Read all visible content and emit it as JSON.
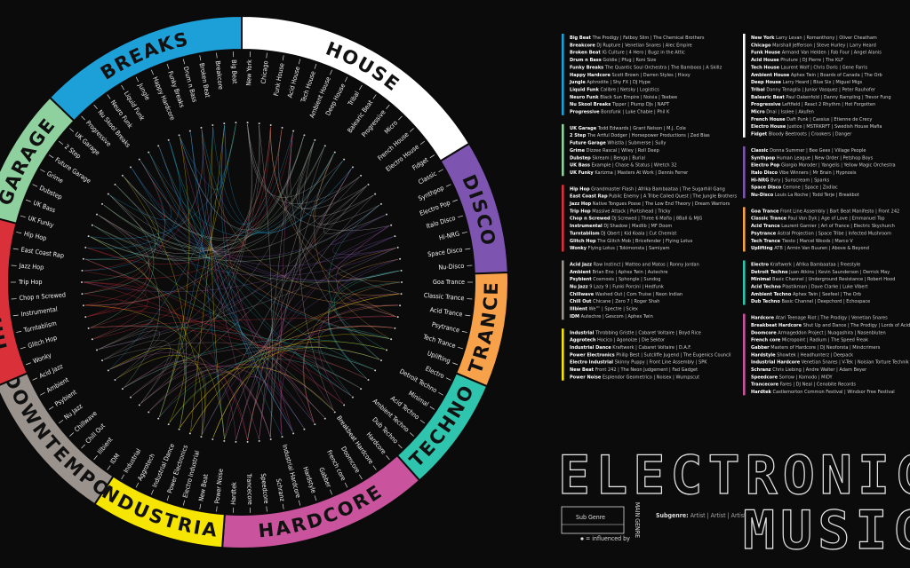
{
  "columns": [
    [
      {
        "name": "BREAKS",
        "color": "#1d9fd8",
        "subgenres": [
          {
            "name": "Big Beat",
            "artists": "The Prodigy | Fatboy Slim | The Chemical Brothers"
          },
          {
            "name": "Breakcore",
            "artists": "DJ Rupture | Venetian Snares | Alec Empire"
          },
          {
            "name": "Broken Beat",
            "artists": "IG Culture | 4 Hero | Bugz in the Attic"
          },
          {
            "name": "Drum n Bass",
            "artists": "Goldie | Pfug | Roni Size"
          },
          {
            "name": "Funky Breaks",
            "artists": "The Quantic Soul Orchestra | The Bamboos | A Skillz"
          },
          {
            "name": "Happy Hardcore",
            "artists": "Scott Brown | Darren Styles | Hixxy"
          },
          {
            "name": "Jungle",
            "artists": "Aphrodite | Shy FX | DJ Hype"
          },
          {
            "name": "Liquid Funk",
            "artists": "Calibre | Netsky | Logistics"
          },
          {
            "name": "Neuro Funk",
            "artists": "Black Sun Empire | Noisia | Teebee"
          },
          {
            "name": "Nu Skool Breaks",
            "artists": "Tipper | Plump DJs | NAPT"
          },
          {
            "name": "Progressive",
            "artists": "Borofunk | Luke Chable | Phil K"
          }
        ]
      },
      {
        "name": "GARAGE",
        "color": "#8fd19e",
        "subgenres": [
          {
            "name": "UK Garage",
            "artists": "Todd Edwards | Grant Nelson | M.J. Cole"
          },
          {
            "name": "2 Step",
            "artists": "The Artful Dodger | Horsepower Productions | Zed Bias"
          },
          {
            "name": "Future Garage",
            "artists": "Whistla | Submerse | Sully"
          },
          {
            "name": "Grime",
            "artists": "Dizzee Rascal | Wiley | Roll Deep"
          },
          {
            "name": "Dubstep",
            "artists": "Skream | Benga | Burial"
          },
          {
            "name": "UK Bass",
            "artists": "Example | Chase & Status | Wretch 32"
          },
          {
            "name": "UK Funky",
            "artists": "Karizma | Masters At Work | Dennis Ferrer"
          }
        ]
      },
      {
        "name": "HIP HOP",
        "color": "#d9303a",
        "subgenres": [
          {
            "name": "Hip Hop",
            "artists": "Grandmaster Flash | Afrika Bambaataa | The Sugarhill Gang"
          },
          {
            "name": "East Coast Rap",
            "artists": "Public Enemy | A Tribe Called Quest | The Jungle Brothers"
          },
          {
            "name": "Jazz Hop",
            "artists": "Native Tongues Posse | The Low End Theory | Dream Warriors"
          },
          {
            "name": "Trip Hop",
            "artists": "Massive Attack | Portishead | Tricky"
          },
          {
            "name": "Chop n Screwed",
            "artists": "DJ Screwed | Three 6 Mafia | 8Ball & MJG"
          },
          {
            "name": "Instrumental",
            "artists": "DJ Shadow | Madlib | MF Doom"
          },
          {
            "name": "Turntablism",
            "artists": "DJ Qbert | Kid Koala | Cut Chemist"
          },
          {
            "name": "Glitch Hop",
            "artists": "The Glitch Mob | Bricefender | Flying Lotus"
          },
          {
            "name": "Wonky",
            "artists": "Flying Lotus | Tokimonsta | Samiyam"
          }
        ]
      },
      {
        "name": "DOWNTEMPO",
        "color": "#9a928c",
        "subgenres": [
          {
            "name": "Acid Jazz",
            "artists": "Raw Instinct | Matteo and Matos | Ronny Jordan"
          },
          {
            "name": "Ambient",
            "artists": "Brian Eno | Aphex Twin | Autechre"
          },
          {
            "name": "Psybient",
            "artists": "Cosmosis | Sphongle | Sundog"
          },
          {
            "name": "Nu Jazz",
            "artists": "9 Lazy 9 | Funki Porcini | Hedfunk"
          },
          {
            "name": "Chillwave",
            "artists": "Washed Out | Com Truise | Neon Indian"
          },
          {
            "name": "Chill Out",
            "artists": "Chicane | Zero 7 | Roger Shah"
          },
          {
            "name": "Illbient",
            "artists": "We™ | Spectre | Sciex"
          },
          {
            "name": "IDM",
            "artists": "Autechre | Gescom | Aphex Twin"
          }
        ]
      },
      {
        "name": "INDUSTRIAL",
        "color": "#f6e500",
        "subgenres": [
          {
            "name": "Industrial",
            "artists": "Throbbing Gristle | Cabaret Voltaire | Boyd Rice"
          },
          {
            "name": "Aggrotech",
            "artists": "Hocico | Agonoize | Die Sektor"
          },
          {
            "name": "Industrial Dance",
            "artists": "Kraftwerk | Cabaret Voltaire | D.A.F."
          },
          {
            "name": "Power Electronics",
            "artists": "Philip Best | Sutcliffe Jugend | The Eugenics Council"
          },
          {
            "name": "Electro Industrial",
            "artists": "Skinny Puppy | Front Line Assembly | SPK"
          },
          {
            "name": "New Beat",
            "artists": "Front 242 | The Neon Judgement | Fad Gadget"
          },
          {
            "name": "Power Noise",
            "artists": "Esplendor Geometrico | Noisex | Wumpscut"
          }
        ]
      }
    ],
    [
      {
        "name": "HOUSE",
        "color": "#ffffff",
        "subgenres": [
          {
            "name": "New York",
            "artists": "Larry Levan | Romanthony | Oliver Cheatham"
          },
          {
            "name": "Chicago",
            "artists": "Marshall Jefferson | Steve Hurley | Larry Heard"
          },
          {
            "name": "Funk House",
            "artists": "Armand Van Helden | Fab Four | Angel Alanis"
          },
          {
            "name": "Acid House",
            "artists": "Phuture | DJ Pierre | The KLF"
          },
          {
            "name": "Tech House",
            "artists": "Laurent Wolf | Chris Doris | Gene Farris"
          },
          {
            "name": "Ambient House",
            "artists": "Aphex Twin | Boards of Canada | The Orb"
          },
          {
            "name": "Deep House",
            "artists": "Larry Heard | Blue Six | Miguel Migs"
          },
          {
            "name": "Tribal",
            "artists": "Danny Tenaglia | Junior Vasquez | Peter Rauhofer"
          },
          {
            "name": "Balearic Beat",
            "artists": "Paul Oakenfold | Danny Rampling | Trevor Fung"
          },
          {
            "name": "Progressive",
            "artists": "Leftfield | React 2 Rhythm | Hot Forgotten"
          },
          {
            "name": "Micro",
            "artists": "Dnai | Isolee | Akufen"
          },
          {
            "name": "French House",
            "artists": "Daft Punk | Cassius | Etienne de Crecy"
          },
          {
            "name": "Electro House",
            "artists": "Justice | MSTRKRFT | Swedish House Mafia"
          },
          {
            "name": "Fidget",
            "artists": "Bloody Beetroots | Crookers | Danger"
          }
        ]
      },
      {
        "name": "DISCO",
        "color": "#7d55b0",
        "subgenres": [
          {
            "name": "Classic",
            "artists": "Donna Summer | Bee Gees | Village People"
          },
          {
            "name": "Synthpop",
            "artists": "Human League | New Order | Petshop Boys"
          },
          {
            "name": "Electro Pop",
            "artists": "Giorgio Moroder | Yangelis | Yellow Magic Orchestra"
          },
          {
            "name": "Italo Disco",
            "artists": "Vibe Winners | Mr Brain | Hypnosis"
          },
          {
            "name": "Hi-NRG",
            "artists": "Bvry | Sunscream | Sparks"
          },
          {
            "name": "Space Disco",
            "artists": "Cerrone | Space | Zodiac"
          },
          {
            "name": "Nu-Disco",
            "artists": "Louis La Roche | Todd Terje | Breakbot"
          }
        ]
      },
      {
        "name": "TRANCE",
        "color": "#f7a24b",
        "subgenres": [
          {
            "name": "Goa Trance",
            "artists": "Front Line Assembly | Bart Beat Manifesto | Front 242"
          },
          {
            "name": "Classic Trance",
            "artists": "Paul Van Dyk | Age of Love | Emmanuel Top"
          },
          {
            "name": "Acid Trance",
            "artists": "Laurent Garnier | Art of Trance | Electric Skychurch"
          },
          {
            "name": "Psytrance",
            "artists": "Astral Projection | Space Tribe | Infected Mushroom"
          },
          {
            "name": "Tech Trance",
            "artists": "Tiesto | Marcel Woods | Marco V"
          },
          {
            "name": "Uplifting",
            "artists": "ATB | Armin Van Buuren | Above & Beyond"
          }
        ]
      },
      {
        "name": "TECHNO",
        "color": "#2ec4ad",
        "subgenres": [
          {
            "name": "Electro",
            "artists": "Kraftwerk | Afrika Bambaataa | Freestyle"
          },
          {
            "name": "Detroit Techno",
            "artists": "Juan Atkins | Kevin Saunderson | Derrick May"
          },
          {
            "name": "Minimal",
            "artists": "Basic Channel | Underground Resistance | Robert Hood"
          },
          {
            "name": "Acid Techno",
            "artists": "Plastikman | Dave Clarke | Luke Vibert"
          },
          {
            "name": "Ambient Techno",
            "artists": "Aphex Twin | Seefeel | The Orb"
          },
          {
            "name": "Dub Techno",
            "artists": "Basic Channel | Deepchord | Echospace"
          }
        ]
      },
      {
        "name": "HARDCORE",
        "color": "#c9539c",
        "subgenres": [
          {
            "name": "Hardcore",
            "artists": "Atari Teenage Riot | The Prodigy | Venetian Snares"
          },
          {
            "name": "Breakbeat Hardcore",
            "artists": "Shut Up and Dance | The Prodigy | Lords of Acid"
          },
          {
            "name": "Doomcore",
            "artists": "Armageddon Project | Nuagashira | Nasenbluten"
          },
          {
            "name": "French core",
            "artists": "Micropoint | Radium | The Speed Freak"
          },
          {
            "name": "Gabber",
            "artists": "Masters of Hardcore | DJ Neoforsta | Mindcrimers"
          },
          {
            "name": "Hardstyle",
            "artists": "Showtek | Headhunterz | Deepack"
          },
          {
            "name": "Industrial Hardcore",
            "artists": "Venetian Snares | V-Tek | Noisian Torture Technik"
          },
          {
            "name": "Schranz",
            "artists": "Chris Liebing | Andre Walter | Adam Beyer"
          },
          {
            "name": "Speedcore",
            "artists": "Sorrow | Komodo | MIDY"
          },
          {
            "name": "Trancecore",
            "artists": "Fares | DJ Neal | Cenobite Records"
          },
          {
            "name": "Hardtek",
            "artists": "Castlemorton Common Festival | Windsor Free Festival"
          }
        ]
      }
    ]
  ],
  "title": [
    "ELECTRONIC",
    "MUSIC"
  ],
  "key": {
    "sub_genre": "Sub Genre",
    "main_genre": "MAIN GENRE",
    "influenced_by": "= influenced by",
    "subgenre_label": "Subgenre:",
    "artists_label": "Artist | Artist | Artist"
  }
}
